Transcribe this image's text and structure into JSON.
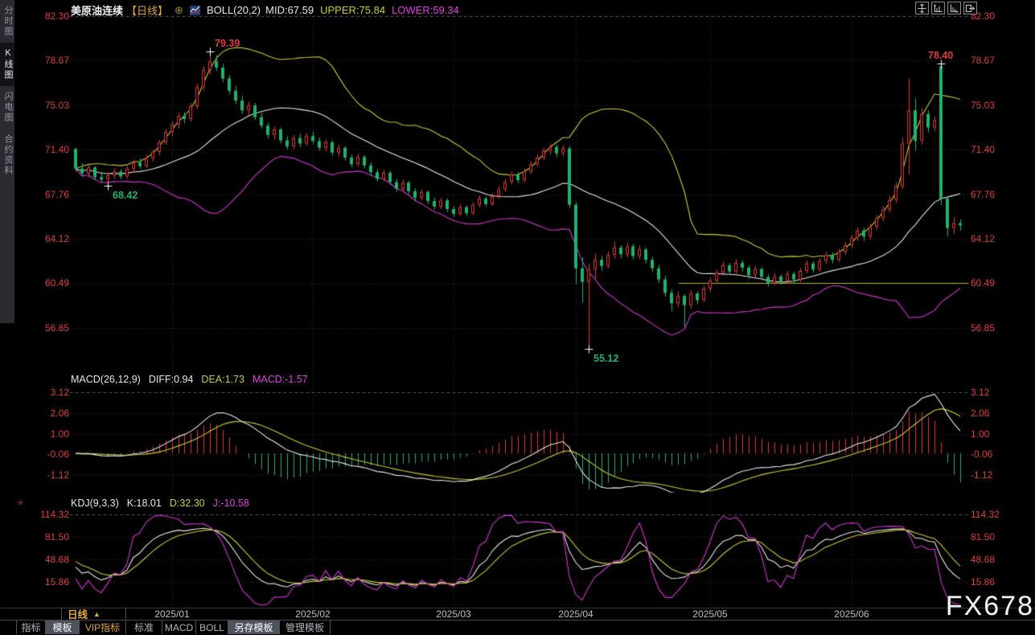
{
  "header": {
    "symbol": "美原油连续",
    "period": "【日线】",
    "plus_icon": "⊕",
    "boll_label": "BOLL(20,2)",
    "mid": "MID:67.59",
    "upper": "UPPER:75.84",
    "lower": "LOWER:59.34"
  },
  "sidebar": {
    "items": [
      {
        "label": "分时图",
        "selected": false
      },
      {
        "label": "K线图",
        "selected": true
      },
      {
        "label": "闪电图",
        "selected": false
      },
      {
        "label": "合约资料",
        "selected": false
      }
    ]
  },
  "macd_header": {
    "label": "MACD(26,12,9)",
    "diff": "DIFF:0.94",
    "dea": "DEA:1.73",
    "macd": "MACD:-1.57"
  },
  "kdj_header": {
    "label": "KDJ(9,3,3)",
    "k": "K:18.01",
    "d": "D:32.30",
    "j": "J:-10.58"
  },
  "timeframe": {
    "label": "日线",
    "arrow": "▲"
  },
  "footer_tabs": [
    {
      "label": "指标",
      "highlight": false,
      "accent": false
    },
    {
      "label": "模板",
      "highlight": true,
      "accent": false
    },
    {
      "label": "VIP指标",
      "highlight": false,
      "accent": true
    },
    {
      "label": "标准",
      "highlight": false,
      "accent": false
    },
    {
      "label": "MACD",
      "highlight": false,
      "accent": false
    },
    {
      "label": "BOLL",
      "highlight": false,
      "accent": false
    },
    {
      "label": "另存模板",
      "highlight": true,
      "accent": false
    },
    {
      "label": "管理模板",
      "highlight": false,
      "accent": false
    }
  ],
  "watermark": "FX678",
  "colors": {
    "axis_label": "#e03a3a",
    "up": "#e23939",
    "down": "#21b26e",
    "boll_mid": "#e6e6e6",
    "boll_upper": "#c9cc2e",
    "boll_lower": "#d434d4",
    "grid_dot": "#6b2222",
    "grid_dash": "#55555c",
    "vgrid": "#38383e",
    "hline_yellow": "#b9bb1f",
    "date_text": "#bfbfc8"
  },
  "chart_data": [
    {
      "type": "candlestick",
      "title": "美原油连续【日线】",
      "overlay": "BOLL(20,2)",
      "boll_values": {
        "mid": 67.59,
        "upper": 75.84,
        "lower": 59.34
      },
      "y_ticks": [
        {
          "label": "82.30",
          "value": 82.3
        },
        {
          "label": "78.67",
          "value": 78.67
        },
        {
          "label": "75.03",
          "value": 75.03
        },
        {
          "label": "71.40",
          "value": 71.4
        },
        {
          "label": "67.76",
          "value": 67.76
        },
        {
          "label": "64.12",
          "value": 64.12
        },
        {
          "label": "60.49",
          "value": 60.49
        },
        {
          "label": "56.85",
          "value": 56.85
        }
      ],
      "x_ticks": [
        {
          "label": "2025/01",
          "index": 15
        },
        {
          "label": "2025/02",
          "index": 37
        },
        {
          "label": "2025/03",
          "index": 59
        },
        {
          "label": "2025/04",
          "index": 78
        },
        {
          "label": "2025/05",
          "index": 99
        },
        {
          "label": "2025/06",
          "index": 121
        }
      ],
      "annotations": [
        {
          "text": "79.39",
          "index": 21,
          "price": 79.39,
          "kind": "high",
          "align": "right"
        },
        {
          "text": "68.42",
          "index": 5,
          "price": 68.42,
          "kind": "low",
          "align": "right"
        },
        {
          "text": "78.40",
          "index": 135,
          "price": 78.4,
          "kind": "high",
          "align": "left"
        },
        {
          "text": "55.12",
          "index": 80,
          "price": 55.12,
          "kind": "low",
          "align": "right"
        }
      ],
      "hline": {
        "price": 60.49,
        "from_index": 94
      },
      "ohlc": [
        [
          71.45,
          71.55,
          69.6,
          69.85
        ],
        [
          69.85,
          70.3,
          69.2,
          69.45
        ],
        [
          69.45,
          70.1,
          69.1,
          69.95
        ],
        [
          69.95,
          70.05,
          68.9,
          69.15
        ],
        [
          69.15,
          69.6,
          68.7,
          68.95
        ],
        [
          68.95,
          69.5,
          68.42,
          69.3
        ],
        [
          69.3,
          69.9,
          69.0,
          69.6
        ],
        [
          69.6,
          69.8,
          68.95,
          69.2
        ],
        [
          69.2,
          70.05,
          69.05,
          69.85
        ],
        [
          69.85,
          70.6,
          69.55,
          70.35
        ],
        [
          70.35,
          70.7,
          69.8,
          70.05
        ],
        [
          70.05,
          70.95,
          69.9,
          70.7
        ],
        [
          70.7,
          71.4,
          70.4,
          71.2
        ],
        [
          71.2,
          72.2,
          70.95,
          72.0
        ],
        [
          72.0,
          73.1,
          71.8,
          72.85
        ],
        [
          72.85,
          73.7,
          72.5,
          73.45
        ],
        [
          73.45,
          74.4,
          73.1,
          74.15
        ],
        [
          74.15,
          74.5,
          73.55,
          73.9
        ],
        [
          73.9,
          75.2,
          73.7,
          74.95
        ],
        [
          74.95,
          76.8,
          74.7,
          76.5
        ],
        [
          76.5,
          78.2,
          76.2,
          77.9
        ],
        [
          77.9,
          79.39,
          77.5,
          78.6
        ],
        [
          78.6,
          79.1,
          77.8,
          78.1
        ],
        [
          78.1,
          78.4,
          76.9,
          77.2
        ],
        [
          77.2,
          77.5,
          75.9,
          76.2
        ],
        [
          76.2,
          76.6,
          75.1,
          75.4
        ],
        [
          75.4,
          75.8,
          74.3,
          74.6
        ],
        [
          74.6,
          75.3,
          74.2,
          75.0
        ],
        [
          75.0,
          75.2,
          73.8,
          74.05
        ],
        [
          74.05,
          74.4,
          73.1,
          73.35
        ],
        [
          73.35,
          73.6,
          72.3,
          72.6
        ],
        [
          72.6,
          73.3,
          72.2,
          73.05
        ],
        [
          73.05,
          73.2,
          71.9,
          72.15
        ],
        [
          72.15,
          72.5,
          71.4,
          71.65
        ],
        [
          71.65,
          72.6,
          71.45,
          72.35
        ],
        [
          72.35,
          72.7,
          71.6,
          71.9
        ],
        [
          71.9,
          72.75,
          71.7,
          72.5
        ],
        [
          72.5,
          72.85,
          71.85,
          72.1
        ],
        [
          72.1,
          72.4,
          71.3,
          71.55
        ],
        [
          71.55,
          72.25,
          71.25,
          72.0
        ],
        [
          72.0,
          72.15,
          70.9,
          71.15
        ],
        [
          71.15,
          71.8,
          70.85,
          71.55
        ],
        [
          71.55,
          71.7,
          70.5,
          70.75
        ],
        [
          70.75,
          71.0,
          69.95,
          70.2
        ],
        [
          70.2,
          71.05,
          70.0,
          70.8
        ],
        [
          70.8,
          70.95,
          69.85,
          70.1
        ],
        [
          70.1,
          70.35,
          69.3,
          69.55
        ],
        [
          69.55,
          69.8,
          68.75,
          69.0
        ],
        [
          69.0,
          69.75,
          68.8,
          69.5
        ],
        [
          69.5,
          69.65,
          68.5,
          68.75
        ],
        [
          68.75,
          69.0,
          67.95,
          68.2
        ],
        [
          68.2,
          68.95,
          68.0,
          68.7
        ],
        [
          68.7,
          68.85,
          67.75,
          68.0
        ],
        [
          68.0,
          68.25,
          67.2,
          67.45
        ],
        [
          67.45,
          68.15,
          67.25,
          67.95
        ],
        [
          67.95,
          68.05,
          66.95,
          67.2
        ],
        [
          67.2,
          67.5,
          66.5,
          66.75
        ],
        [
          66.75,
          67.45,
          66.55,
          67.25
        ],
        [
          67.25,
          67.4,
          66.3,
          66.55
        ],
        [
          66.55,
          66.8,
          65.9,
          66.15
        ],
        [
          66.15,
          66.95,
          66.0,
          66.7
        ],
        [
          66.7,
          66.85,
          65.95,
          66.2
        ],
        [
          66.2,
          67.1,
          66.05,
          66.9
        ],
        [
          66.9,
          67.65,
          66.7,
          67.4
        ],
        [
          67.4,
          67.55,
          66.7,
          66.95
        ],
        [
          66.95,
          67.8,
          66.8,
          67.6
        ],
        [
          67.6,
          68.4,
          67.4,
          68.15
        ],
        [
          68.15,
          69.0,
          67.95,
          68.75
        ],
        [
          68.75,
          69.6,
          68.55,
          69.35
        ],
        [
          69.35,
          69.55,
          68.65,
          68.9
        ],
        [
          68.9,
          69.85,
          68.7,
          69.6
        ],
        [
          69.6,
          70.45,
          69.4,
          70.2
        ],
        [
          70.2,
          71.0,
          70.0,
          70.75
        ],
        [
          70.75,
          71.55,
          70.55,
          71.3
        ],
        [
          71.3,
          71.85,
          71.0,
          71.6
        ],
        [
          71.6,
          71.8,
          70.8,
          71.1
        ],
        [
          71.1,
          71.75,
          70.85,
          71.5
        ],
        [
          71.5,
          71.7,
          66.6,
          66.9
        ],
        [
          66.9,
          67.1,
          60.4,
          61.7
        ],
        [
          61.7,
          62.6,
          58.9,
          60.6
        ],
        [
          60.6,
          62.1,
          55.12,
          61.6
        ],
        [
          61.6,
          62.9,
          60.9,
          62.4
        ],
        [
          62.4,
          62.7,
          61.5,
          61.9
        ],
        [
          61.9,
          63.1,
          61.7,
          62.8
        ],
        [
          62.8,
          63.9,
          62.5,
          63.4
        ],
        [
          63.4,
          63.6,
          62.5,
          62.85
        ],
        [
          62.85,
          63.8,
          62.6,
          63.5
        ],
        [
          63.5,
          63.7,
          62.4,
          62.7
        ],
        [
          62.7,
          63.55,
          62.45,
          63.25
        ],
        [
          63.25,
          63.4,
          62.1,
          62.4
        ],
        [
          62.4,
          62.65,
          61.4,
          61.7
        ],
        [
          61.7,
          62.0,
          60.5,
          60.8
        ],
        [
          60.8,
          61.1,
          59.4,
          59.7
        ],
        [
          59.7,
          60.0,
          58.2,
          58.85
        ],
        [
          58.85,
          59.8,
          58.55,
          59.45
        ],
        [
          59.45,
          59.6,
          56.9,
          58.7
        ],
        [
          58.7,
          59.9,
          58.4,
          59.65
        ],
        [
          59.65,
          59.85,
          58.75,
          59.1
        ],
        [
          59.1,
          60.3,
          58.95,
          60.05
        ],
        [
          60.05,
          60.95,
          59.8,
          60.7
        ],
        [
          60.7,
          61.6,
          60.45,
          61.35
        ],
        [
          61.35,
          62.25,
          61.1,
          61.95
        ],
        [
          61.95,
          62.15,
          61.15,
          61.45
        ],
        [
          61.45,
          62.45,
          61.25,
          62.15
        ],
        [
          62.15,
          62.35,
          61.45,
          61.75
        ],
        [
          61.75,
          61.95,
          60.85,
          61.15
        ],
        [
          61.15,
          61.9,
          60.95,
          61.65
        ],
        [
          61.65,
          61.8,
          60.7,
          61.0
        ],
        [
          61.0,
          61.25,
          60.2,
          60.5
        ],
        [
          60.5,
          61.3,
          60.3,
          61.05
        ],
        [
          61.05,
          61.2,
          60.35,
          60.65
        ],
        [
          60.65,
          61.5,
          60.45,
          61.25
        ],
        [
          61.25,
          61.4,
          60.5,
          60.8
        ],
        [
          60.8,
          61.75,
          60.6,
          61.5
        ],
        [
          61.5,
          62.35,
          61.3,
          62.1
        ],
        [
          62.1,
          62.3,
          61.35,
          61.6
        ],
        [
          61.6,
          62.55,
          61.4,
          62.3
        ],
        [
          62.3,
          63.05,
          62.05,
          62.8
        ],
        [
          62.8,
          63.0,
          62.1,
          62.4
        ],
        [
          62.4,
          63.3,
          62.2,
          63.05
        ],
        [
          63.05,
          63.85,
          62.8,
          63.6
        ],
        [
          63.6,
          64.45,
          63.35,
          64.2
        ],
        [
          64.2,
          65.05,
          63.95,
          64.8
        ],
        [
          64.8,
          65.0,
          63.95,
          64.3
        ],
        [
          64.3,
          65.35,
          64.1,
          65.1
        ],
        [
          65.1,
          66.05,
          64.85,
          65.8
        ],
        [
          65.8,
          66.8,
          65.55,
          66.5
        ],
        [
          66.5,
          67.6,
          66.25,
          67.3
        ],
        [
          67.3,
          68.75,
          67.05,
          68.4
        ],
        [
          68.4,
          72.4,
          68.15,
          71.9
        ],
        [
          71.9,
          77.2,
          69.4,
          74.6
        ],
        [
          74.6,
          75.6,
          71.3,
          72.1
        ],
        [
          72.1,
          74.8,
          71.8,
          74.3
        ],
        [
          74.3,
          74.6,
          72.8,
          73.2
        ],
        [
          73.2,
          74.1,
          72.9,
          73.8
        ],
        [
          78.2,
          78.4,
          66.9,
          67.4
        ],
        [
          67.4,
          67.6,
          64.3,
          65.0
        ],
        [
          65.0,
          65.9,
          64.5,
          65.4
        ],
        [
          65.4,
          65.7,
          64.8,
          65.2
        ]
      ]
    },
    {
      "type": "macd",
      "label": "MACD(26,12,9)",
      "params": [
        26,
        12,
        9
      ],
      "last_values": {
        "diff": 0.94,
        "dea": 1.73,
        "macd": -1.57
      },
      "y_ticks": [
        {
          "label": "3.12",
          "value": 3.12
        },
        {
          "label": "2.06",
          "value": 2.06
        },
        {
          "label": "1.00",
          "value": 1.0
        },
        {
          "label": "-0.06",
          "value": -0.06
        },
        {
          "label": "-1.12",
          "value": -1.12
        }
      ]
    },
    {
      "type": "kdj",
      "label": "KDJ(9,3,3)",
      "params": [
        9,
        3,
        3
      ],
      "last_values": {
        "k": 18.01,
        "d": 32.3,
        "j": -10.58
      },
      "y_ticks": [
        {
          "label": "114.32",
          "value": 114.32
        },
        {
          "label": "81.50",
          "value": 81.5
        },
        {
          "label": "48.68",
          "value": 48.68
        },
        {
          "label": "15.86",
          "value": 15.86
        }
      ]
    }
  ]
}
